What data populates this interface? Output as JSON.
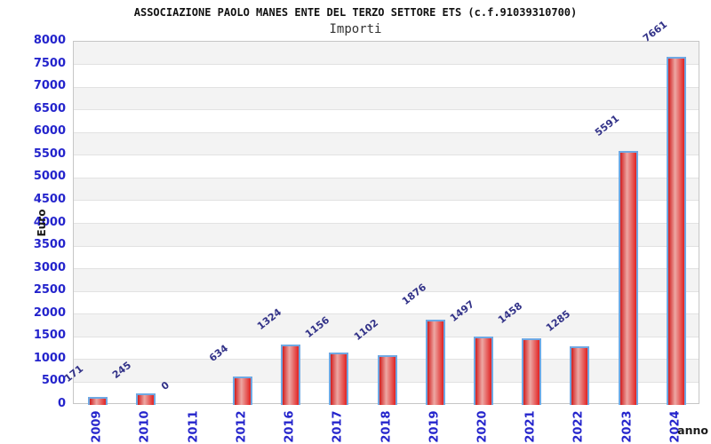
{
  "header": {
    "title": "ASSOCIAZIONE PAOLO MANES ENTE DEL TERZO SETTORE ETS (c.f.91039310700)",
    "subtitle": "Importi"
  },
  "chart_data": {
    "type": "bar",
    "title": "ASSOCIAZIONE PAOLO MANES ENTE DEL TERZO SETTORE ETS (c.f.91039310700)",
    "subtitle": "Importi",
    "categories": [
      "2009",
      "2010",
      "2011",
      "2012",
      "2016",
      "2017",
      "2018",
      "2019",
      "2020",
      "2021",
      "2022",
      "2023",
      "2024"
    ],
    "values": [
      171,
      245,
      0,
      634,
      1324,
      1156,
      1102,
      1876,
      1497,
      1458,
      1285,
      5591,
      7661
    ],
    "xlabel": "anno",
    "ylabel": "Euro",
    "ylim": [
      0,
      8000
    ],
    "ytick_step": 500,
    "grid": true,
    "legend_position": "none",
    "colors": {
      "bar_fill_edge": "#d01d1d",
      "bar_fill_center": "#eda8a4",
      "bar_border": "#6fa8e3",
      "tick_label": "#2424cc",
      "value_label": "#323288",
      "band_gray": "#f3f3f3",
      "band_white": "#ffffff",
      "gridline": "#e2e2e2"
    }
  }
}
